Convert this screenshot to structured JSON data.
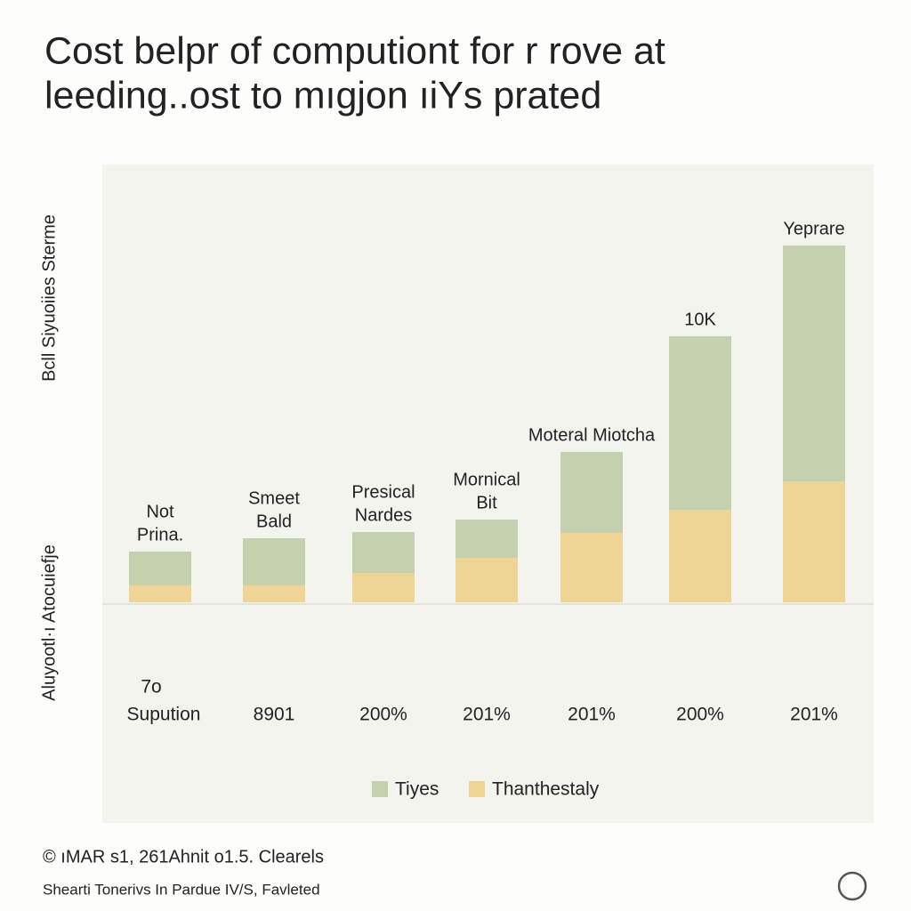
{
  "chart_data": {
    "type": "stacked-bar",
    "title": [
      "Cost belpr of computiont for r rove at",
      "leeding..ost to mıgjon ıiYs prated"
    ],
    "y_labels": [
      "Bcll Siyuoiies Sterme",
      "Aluyootl·ı Atocuiefje"
    ],
    "categories": [
      "Supution",
      "8901",
      "200%",
      "201%",
      "201%",
      "200%",
      "201%"
    ],
    "annotations": [
      "7o"
    ],
    "bar_labels": [
      [
        "Not",
        "Prina."
      ],
      [
        "Smeet",
        "Bald"
      ],
      [
        "Presical",
        "Nardes"
      ],
      [
        "Mornical",
        "Bit"
      ],
      [
        "Moteral Miotcha"
      ],
      [
        "10K"
      ],
      [
        "Yeprare"
      ]
    ],
    "series": [
      {
        "name": "Tiyes",
        "color": "#c4d0ae",
        "values": [
          38,
          53,
          46,
          43,
          91,
          195,
          265
        ]
      },
      {
        "name": "Thanthestaly",
        "color": "#eed596",
        "values": [
          19,
          19,
          33,
          50,
          78,
          104,
          136
        ]
      }
    ],
    "footer": [
      "© ıMAR s1, 261Ahnit o1.5. Clearels",
      "Shearti Tonerivs In Pardue IV/S, Favleted"
    ]
  }
}
